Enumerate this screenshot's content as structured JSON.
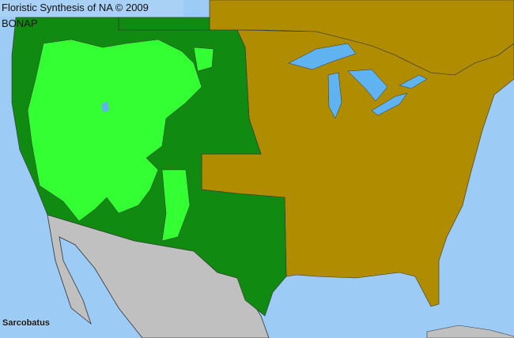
{
  "header": {
    "title": "Floristic Synthesis of NA © 2009 BONAP"
  },
  "map": {
    "taxon": "Sarcobatus",
    "colors": {
      "water": "#9ccbf5",
      "native_present": "#118a11",
      "native_common": "#33ff33",
      "absent": "#b08c00",
      "outside_range": "#c0c0c0",
      "lakes": "#5fb3f0",
      "borders": "#333333"
    }
  }
}
